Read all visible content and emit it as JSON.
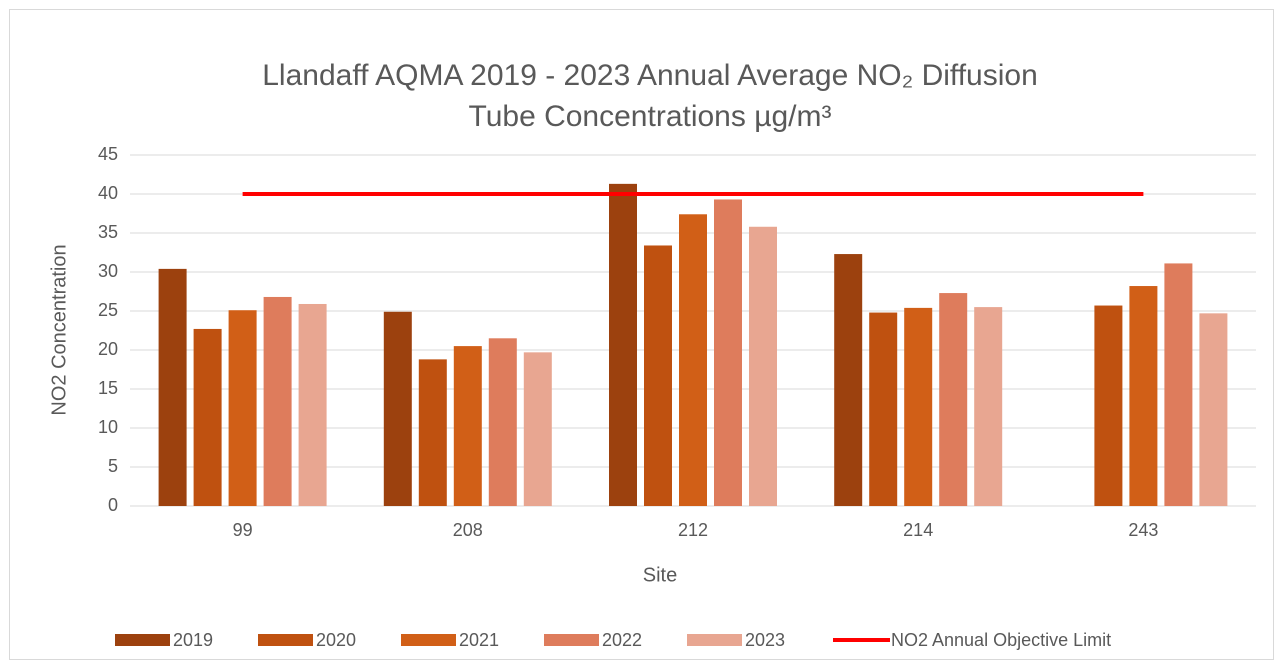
{
  "chart_data": {
    "type": "bar",
    "title": [
      "Llandaff AQMA 2019 - 2023 Annual Average NO₂ Diffusion",
      "Tube Concentrations µg/m³"
    ],
    "x_label": "Site",
    "y_label": "NO2 Concentration",
    "categories": [
      "99",
      "208",
      "212",
      "214",
      "243"
    ],
    "series": [
      {
        "name": "2019",
        "color": "#9c410e",
        "values": [
          30.4,
          24.9,
          41.3,
          32.3,
          null
        ]
      },
      {
        "name": "2020",
        "color": "#bf5110",
        "values": [
          22.7,
          18.8,
          33.4,
          24.8,
          25.7
        ]
      },
      {
        "name": "2021",
        "color": "#d15f17",
        "values": [
          25.1,
          20.5,
          37.4,
          25.4,
          28.2
        ]
      },
      {
        "name": "2022",
        "color": "#de7c5c",
        "values": [
          26.8,
          21.5,
          39.3,
          27.3,
          31.1
        ]
      },
      {
        "name": "2023",
        "color": "#e8a691",
        "values": [
          25.9,
          19.7,
          35.8,
          25.5,
          24.7
        ]
      },
      {
        "name": "NO2 Annual Objective Limit",
        "type": "line",
        "color": "#ff0000",
        "values": [
          40,
          40,
          40,
          40,
          40
        ]
      }
    ],
    "ylim": [
      0,
      45
    ],
    "yticks": [
      0,
      5,
      10,
      15,
      20,
      25,
      30,
      35,
      40,
      45
    ],
    "grid": true,
    "legend": "bottom"
  }
}
